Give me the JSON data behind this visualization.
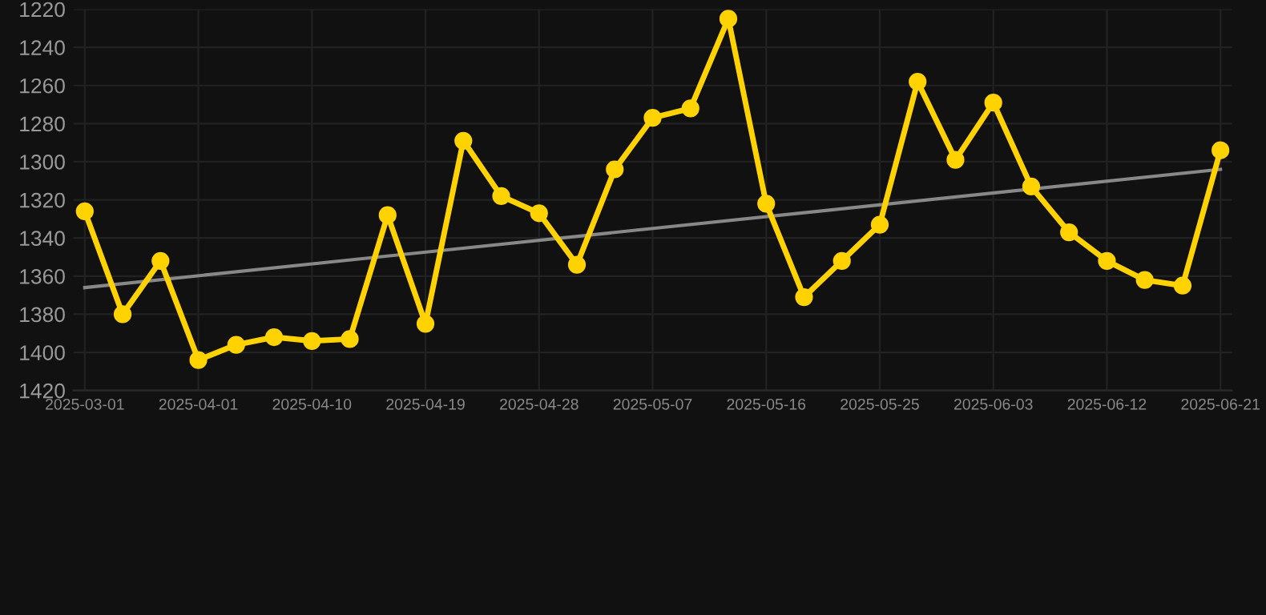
{
  "chart_data": {
    "type": "line",
    "categories": [
      "2025-03-01",
      null,
      null,
      "2025-04-01",
      null,
      null,
      "2025-04-10",
      null,
      null,
      "2025-04-19",
      null,
      null,
      "2025-04-28",
      null,
      null,
      "2025-05-07",
      null,
      null,
      "2025-05-16",
      null,
      null,
      "2025-05-25",
      null,
      null,
      "2025-06-03",
      null,
      null,
      "2025-06-12",
      null,
      null,
      "2025-06-21"
    ],
    "series": [
      {
        "color": "#ffd200",
        "marker": "circle",
        "values": [
          1326,
          1380,
          1352,
          1404,
          1396,
          1392,
          1394,
          1393,
          1328,
          1385,
          1289,
          1318,
          1327,
          1354,
          1304,
          1277,
          1272,
          1225,
          1322,
          1371,
          1352,
          1333,
          1258,
          1299,
          1269,
          1313,
          1337,
          1352,
          1362,
          1365,
          1294
        ]
      },
      {
        "color": "#888888",
        "marker": "none",
        "values": [
          1366,
          null,
          null,
          null,
          null,
          null,
          null,
          null,
          null,
          null,
          null,
          null,
          null,
          null,
          null,
          null,
          null,
          null,
          null,
          null,
          null,
          null,
          null,
          null,
          null,
          null,
          null,
          null,
          null,
          null,
          1304
        ]
      }
    ],
    "ylim": [
      1420,
      1220
    ],
    "yticks": [
      1220,
      1240,
      1260,
      1280,
      1300,
      1320,
      1340,
      1360,
      1380,
      1400,
      1420
    ],
    "grid": true,
    "line_style": "solid"
  }
}
